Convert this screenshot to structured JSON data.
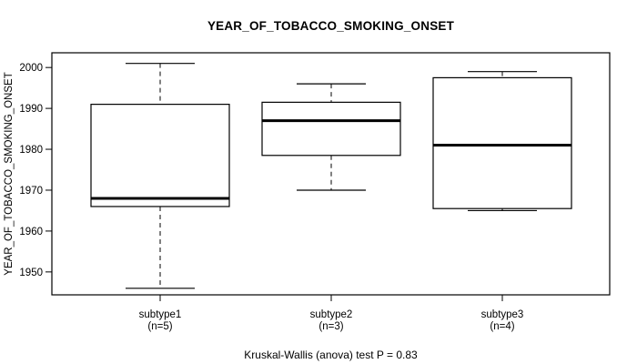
{
  "title": "YEAR_OF_TOBACCO_SMOKING_ONSET",
  "caption": "Kruskal-Wallis (anova) test P = 0.83",
  "chart_data": {
    "type": "boxplot",
    "title": "YEAR_OF_TOBACCO_SMOKING_ONSET",
    "xlabel": "",
    "ylabel": "YEAR_OF_TOBACCO_SMOKING_ONSET",
    "ylim": [
      1944.4,
      2003.6
    ],
    "yticks": [
      1950,
      1960,
      1970,
      1980,
      1990,
      2000
    ],
    "grid": false,
    "legend": "none",
    "caption": "Kruskal-Wallis (anova) test P = 0.83",
    "line_color": "#000000",
    "box_fill": "#ffffff",
    "background": "#ffffff",
    "categories": [
      "subtype1",
      "subtype2",
      "subtype3"
    ],
    "groups": [
      {
        "label": "subtype1",
        "count_label": "(n=5)",
        "n": 5,
        "whisker_low": 1946,
        "q1": 1966,
        "median": 1968,
        "q3": 1991,
        "whisker_high": 2001
      },
      {
        "label": "subtype2",
        "count_label": "(n=3)",
        "n": 3,
        "whisker_low": 1970,
        "q1": 1978.5,
        "median": 1987,
        "q3": 1991.5,
        "whisker_high": 1996
      },
      {
        "label": "subtype3",
        "count_label": "(n=4)",
        "n": 4,
        "whisker_low": 1965,
        "q1": 1965.5,
        "median": 1981,
        "q3": 1997.5,
        "whisker_high": 1999
      }
    ]
  }
}
